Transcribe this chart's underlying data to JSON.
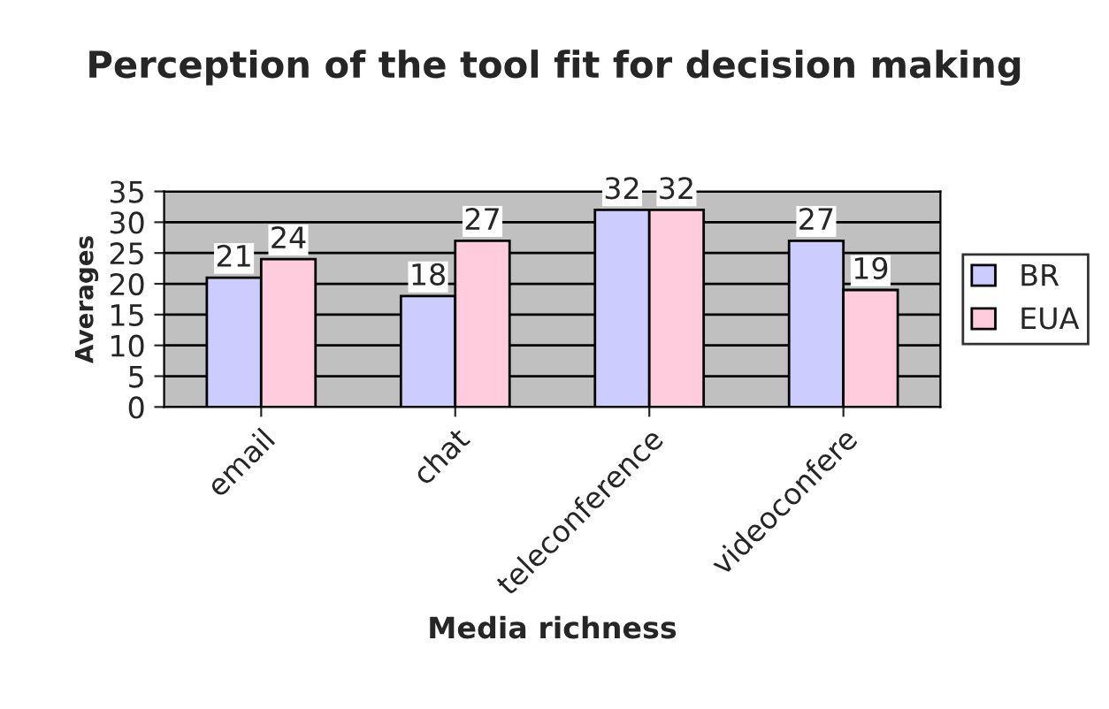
{
  "chart_data": {
    "type": "bar",
    "title": "Perception of the tool fit for decision making",
    "xlabel": "Media richness",
    "ylabel": "Averages",
    "categories": [
      "email",
      "chat",
      "teleconference",
      "videoconfere"
    ],
    "series": [
      {
        "name": "BR",
        "color": "#ccccff",
        "values": [
          21,
          18,
          32,
          27
        ]
      },
      {
        "name": "EUA",
        "color": "#ffccdd",
        "values": [
          24,
          27,
          32,
          19
        ]
      }
    ],
    "ylim": [
      0,
      35
    ],
    "yticks": [
      0,
      5,
      10,
      15,
      20,
      25,
      30,
      35
    ],
    "grid": "y",
    "legend": "right",
    "data_labels": true
  }
}
